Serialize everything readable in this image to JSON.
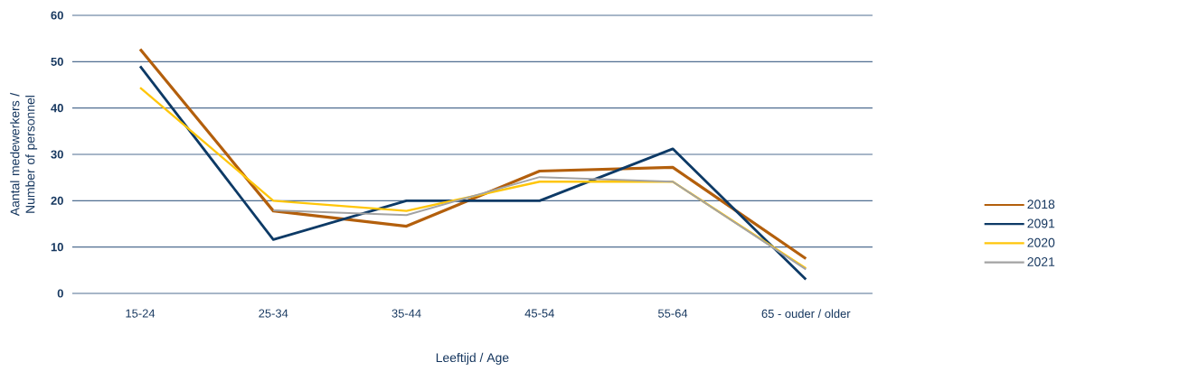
{
  "chart_data": {
    "type": "line",
    "categories": [
      "15-24",
      "25-34",
      "35-44",
      "45-54",
      "55-64",
      "65 - ouder / older"
    ],
    "series": [
      {
        "name": "2018",
        "color": "#b35f0c",
        "values": [
          52.7,
          17.8,
          14.5,
          26.4,
          27.2,
          7.5
        ]
      },
      {
        "name": "2091",
        "color": "#0d3a66",
        "values": [
          49,
          11.6,
          20,
          20,
          31.2,
          3
        ]
      },
      {
        "name": "2020",
        "color": "#ffc60a",
        "values": [
          44.4,
          20,
          17.8,
          24.1,
          24.1,
          5.4
        ]
      },
      {
        "name": "2021",
        "color": "#a3a3a3",
        "values": [
          null,
          17.9,
          16.9,
          25.1,
          24.1,
          5.2
        ]
      }
    ],
    "xlabel": "Leeftijd / Age",
    "ylabel": "Aantal medewerkers / Number of personnel",
    "ylim": [
      0,
      60
    ],
    "yticks": [
      0,
      10,
      20,
      30,
      40,
      50,
      60
    ],
    "grid": "y",
    "legend": "right",
    "marker": "none",
    "line_style": "solid"
  }
}
